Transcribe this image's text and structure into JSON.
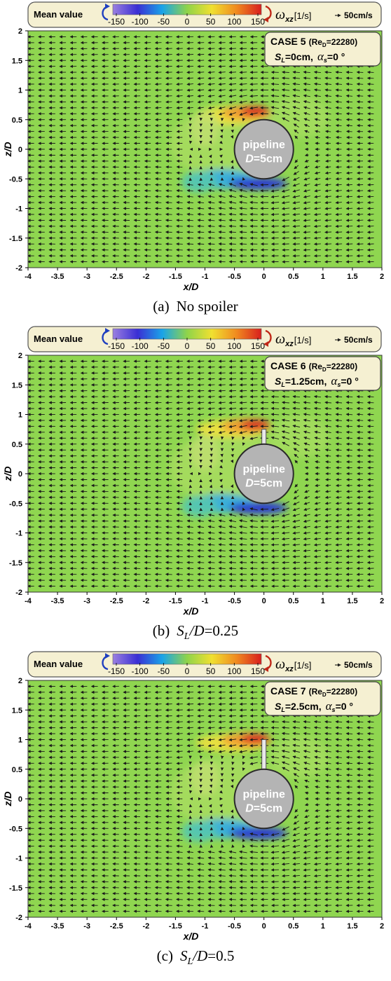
{
  "panels": [
    {
      "caption_prefix": "(a)",
      "caption_text": "No  spoiler",
      "caption_sl": "",
      "caption_sub": "",
      "caption_d": "",
      "caption_val": "",
      "spoiler_length_D": 0,
      "legend": {
        "mean_label": "Mean value",
        "ticks": [
          "-150",
          "-100",
          "-50",
          "0",
          "50",
          "100",
          "150"
        ],
        "omega_symbol": "ω",
        "omega_sub": "xz",
        "unit": "[1/s]",
        "arrow_ref": "50cm/s"
      },
      "case_box": {
        "case_label": "CASE 5",
        "re_text": "(Re",
        "re_sub": "D",
        "re_value": "=22280)",
        "sl_symbol": "S",
        "sl_sub": "L",
        "sl_value": "=0cm,",
        "alpha_symbol": "α",
        "alpha_sub": "s",
        "alpha_value": "=0 °"
      },
      "pipe_label_1": "pipeline",
      "pipe_label_2_sym": "D",
      "pipe_label_2_val": "=5cm"
    },
    {
      "caption_prefix": "(b)",
      "caption_text": "",
      "caption_sl": "S",
      "caption_sub": "L",
      "caption_d": "/D",
      "caption_val": "=0.25",
      "spoiler_length_D": 0.25,
      "legend": {
        "mean_label": "Mean value",
        "ticks": [
          "-150",
          "-100",
          "-50",
          "0",
          "50",
          "100",
          "150"
        ],
        "omega_symbol": "ω",
        "omega_sub": "xz",
        "unit": "[1/s]",
        "arrow_ref": "50cm/s"
      },
      "case_box": {
        "case_label": "CASE 6",
        "re_text": "(Re",
        "re_sub": "D",
        "re_value": "=22280)",
        "sl_symbol": "S",
        "sl_sub": "L",
        "sl_value": "=1.25cm,",
        "alpha_symbol": "α",
        "alpha_sub": "s",
        "alpha_value": "=0 °"
      },
      "pipe_label_1": "pipeline",
      "pipe_label_2_sym": "D",
      "pipe_label_2_val": "=5cm"
    },
    {
      "caption_prefix": "(c)",
      "caption_text": "",
      "caption_sl": "S",
      "caption_sub": "L",
      "caption_d": "/D",
      "caption_val": "=0.5",
      "spoiler_length_D": 0.5,
      "legend": {
        "mean_label": "Mean value",
        "ticks": [
          "-150",
          "-100",
          "-50",
          "0",
          "50",
          "100",
          "150"
        ],
        "omega_symbol": "ω",
        "omega_sub": "xz",
        "unit": "[1/s]",
        "arrow_ref": "50cm/s"
      },
      "case_box": {
        "case_label": "CASE 7",
        "re_text": "(Re",
        "re_sub": "D",
        "re_value": "=22280)",
        "sl_symbol": "S",
        "sl_sub": "L",
        "sl_value": "=2.5cm,",
        "alpha_symbol": "α",
        "alpha_sub": "s",
        "alpha_value": "=0 °"
      },
      "pipe_label_1": "pipeline",
      "pipe_label_2_sym": "D",
      "pipe_label_2_val": "=5cm"
    }
  ],
  "chart_data": [
    {
      "type": "heatmap",
      "title": "",
      "xlabel": "x/D",
      "ylabel": "z/D",
      "xlim": [
        -4,
        2
      ],
      "ylim": [
        -2,
        2
      ],
      "x_ticks": [
        "-4",
        "-3.5",
        "-3",
        "-2.5",
        "-2",
        "-1.5",
        "-1",
        "-0.5",
        "0",
        "0.5",
        "1",
        "1.5",
        "2"
      ],
      "y_ticks": [
        "2",
        "1.5",
        "1",
        "0.5",
        "0",
        "-0.5",
        "-1",
        "-1.5",
        "-2"
      ],
      "colorbar_range": [
        -150,
        150
      ],
      "colorbar_colors": [
        "#9a7fe0",
        "#3a2fd4",
        "#1aa4e8",
        "#8fd44a",
        "#f0e030",
        "#f08a20",
        "#d81e1e"
      ],
      "background_color": "#8fd650",
      "pipeline": {
        "center_x": 0,
        "center_z": 0,
        "diameter": 1,
        "color": "#b4b4b4"
      },
      "spoiler_length_D": 0
    },
    {
      "type": "heatmap",
      "title": "",
      "xlabel": "x/D",
      "ylabel": "z/D",
      "xlim": [
        -4,
        2
      ],
      "ylim": [
        -2,
        2
      ],
      "x_ticks": [
        "-4",
        "-3.5",
        "-3",
        "-2.5",
        "-2",
        "-1.5",
        "-1",
        "-0.5",
        "0",
        "0.5",
        "1",
        "1.5",
        "2"
      ],
      "y_ticks": [
        "2",
        "1.5",
        "1",
        "0.5",
        "0",
        "-0.5",
        "-1",
        "-1.5",
        "-2"
      ],
      "colorbar_range": [
        -150,
        150
      ],
      "colorbar_colors": [
        "#9a7fe0",
        "#3a2fd4",
        "#1aa4e8",
        "#8fd44a",
        "#f0e030",
        "#f08a20",
        "#d81e1e"
      ],
      "background_color": "#8fd650",
      "pipeline": {
        "center_x": 0,
        "center_z": 0,
        "diameter": 1,
        "color": "#b4b4b4"
      },
      "spoiler_length_D": 0.25
    },
    {
      "type": "heatmap",
      "title": "",
      "xlabel": "x/D",
      "ylabel": "z/D",
      "xlim": [
        -4,
        2
      ],
      "ylim": [
        -2,
        2
      ],
      "x_ticks": [
        "-4",
        "-3.5",
        "-3",
        "-2.5",
        "-2",
        "-1.5",
        "-1",
        "-0.5",
        "0",
        "0.5",
        "1",
        "1.5",
        "2"
      ],
      "y_ticks": [
        "2",
        "1.5",
        "1",
        "0.5",
        "0",
        "-0.5",
        "-1",
        "-1.5",
        "-2"
      ],
      "colorbar_range": [
        -150,
        150
      ],
      "colorbar_colors": [
        "#9a7fe0",
        "#3a2fd4",
        "#1aa4e8",
        "#8fd44a",
        "#f0e030",
        "#f08a20",
        "#d81e1e"
      ],
      "background_color": "#8fd650",
      "pipeline": {
        "center_x": 0,
        "center_z": 0,
        "diameter": 1,
        "color": "#b4b4b4"
      },
      "spoiler_length_D": 0.5
    }
  ]
}
